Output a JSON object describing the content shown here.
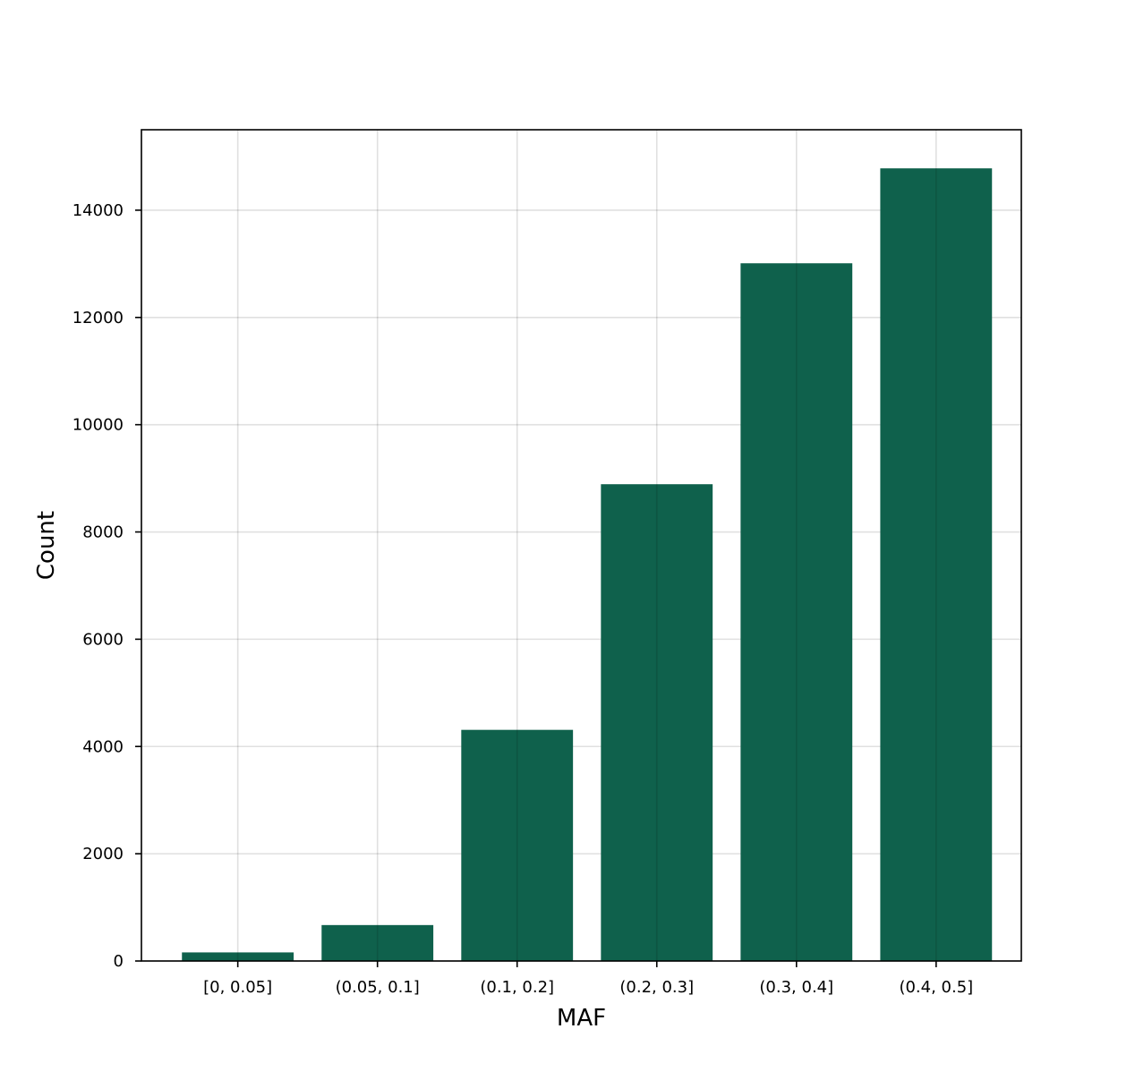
{
  "chart_data": {
    "type": "bar",
    "categories": [
      "[0, 0.05]",
      "(0.05, 0.1]",
      "(0.1, 0.2]",
      "(0.2, 0.3]",
      "(0.3, 0.4]",
      "(0.4, 0.5]"
    ],
    "values": [
      160,
      670,
      4310,
      8890,
      13010,
      14780
    ],
    "xlabel": "MAF",
    "ylabel": "Count",
    "ylim": [
      0,
      15500
    ],
    "yticks": [
      0,
      2000,
      4000,
      6000,
      8000,
      10000,
      12000,
      14000
    ],
    "grid": true,
    "bar_color": "#0f614c"
  }
}
